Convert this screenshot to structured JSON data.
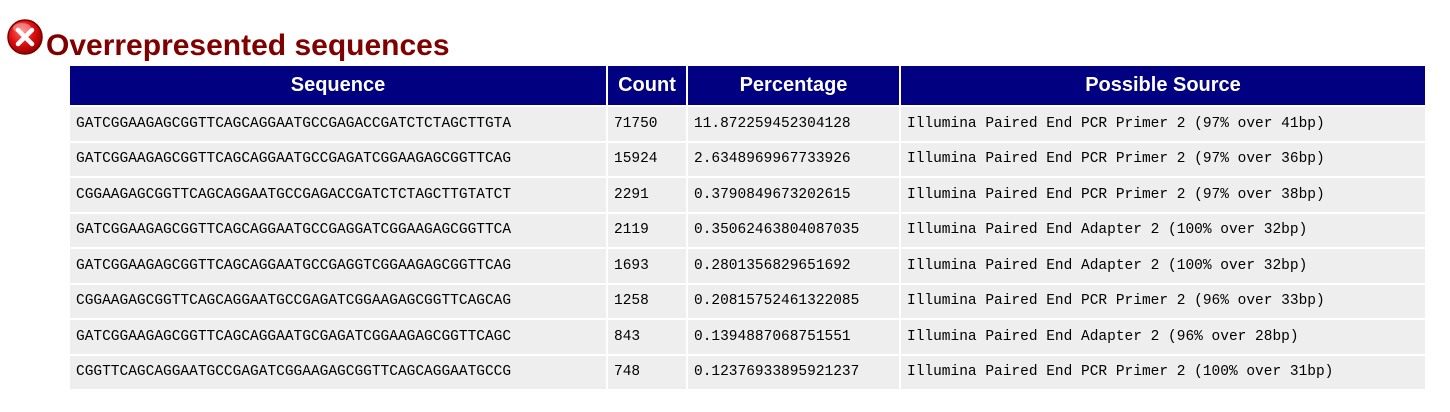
{
  "header": {
    "title": "Overrepresented sequences",
    "status_icon": "error-icon",
    "status_color": "#cc0000",
    "title_color": "#800000"
  },
  "table": {
    "header_bg": "#000080",
    "columns": [
      "Sequence",
      "Count",
      "Percentage",
      "Possible Source"
    ],
    "rows": [
      {
        "sequence": "GATCGGAAGAGCGGTTCAGCAGGAATGCCGAGACCGATCTCTAGCTTGTA",
        "count": "71750",
        "percentage": "11.872259452304128",
        "source": "Illumina Paired End PCR Primer 2 (97% over 41bp)"
      },
      {
        "sequence": "GATCGGAAGAGCGGTTCAGCAGGAATGCCGAGATCGGAAGAGCGGTTCAG",
        "count": "15924",
        "percentage": "2.6348969967733926",
        "source": "Illumina Paired End PCR Primer 2 (97% over 36bp)"
      },
      {
        "sequence": "CGGAAGAGCGGTTCAGCAGGAATGCCGAGACCGATCTCTAGCTTGTATCT",
        "count": "2291",
        "percentage": "0.3790849673202615",
        "source": "Illumina Paired End PCR Primer 2 (97% over 38bp)"
      },
      {
        "sequence": "GATCGGAAGAGCGGTTCAGCAGGAATGCCGAGGATCGGAAGAGCGGTTCA",
        "count": "2119",
        "percentage": "0.35062463804087035",
        "source": "Illumina Paired End Adapter 2 (100% over 32bp)"
      },
      {
        "sequence": "GATCGGAAGAGCGGTTCAGCAGGAATGCCGAGGTCGGAAGAGCGGTTCAG",
        "count": "1693",
        "percentage": "0.2801356829651692",
        "source": "Illumina Paired End Adapter 2 (100% over 32bp)"
      },
      {
        "sequence": "CGGAAGAGCGGTTCAGCAGGAATGCCGAGATCGGAAGAGCGGTTCAGCAG",
        "count": "1258",
        "percentage": "0.20815752461322085",
        "source": "Illumina Paired End PCR Primer 2 (96% over 33bp)"
      },
      {
        "sequence": "GATCGGAAGAGCGGTTCAGCAGGAATGCGAGATCGGAAGAGCGGTTCAGC",
        "count": "843",
        "percentage": "0.1394887068751551",
        "source": "Illumina Paired End Adapter 2 (96% over 28bp)"
      },
      {
        "sequence": "CGGTTCAGCAGGAATGCCGAGATCGGAAGAGCGGTTCAGCAGGAATGCCG",
        "count": "748",
        "percentage": "0.12376933895921237",
        "source": "Illumina Paired End PCR Primer 2 (100% over 31bp)"
      }
    ]
  }
}
